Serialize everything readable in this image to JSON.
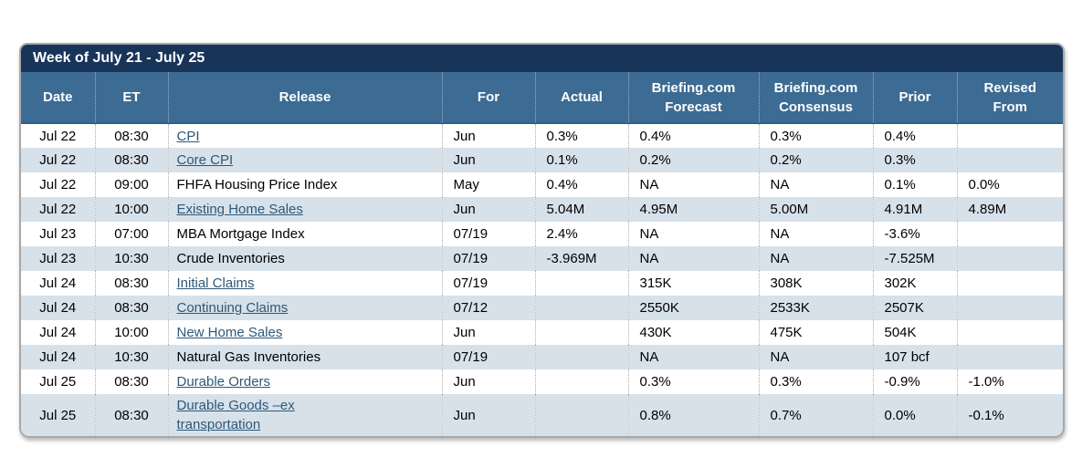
{
  "panel": {
    "title": "Week of July 21 - July 25"
  },
  "colors": {
    "title_bar_bg": "#183459",
    "header_bg": "#3c6b93",
    "header_underline": "#2f6189",
    "alt_row_bg": "#d7e1ea",
    "link_color": "#2d5878",
    "panel_border": "#a8a8a8"
  },
  "table": {
    "columns": [
      {
        "key": "date",
        "label": "Date"
      },
      {
        "key": "et",
        "label": "ET"
      },
      {
        "key": "release",
        "label": "Release"
      },
      {
        "key": "for",
        "label": "For"
      },
      {
        "key": "actual",
        "label": "Actual"
      },
      {
        "key": "forecast",
        "label": "Briefing.com\nForecast"
      },
      {
        "key": "consensus",
        "label": "Briefing.com\nConsensus"
      },
      {
        "key": "prior",
        "label": "Prior"
      },
      {
        "key": "revised",
        "label": "Revised\nFrom"
      }
    ],
    "rows": [
      {
        "date": "Jul 22",
        "et": "08:30",
        "release": "CPI",
        "is_link": true,
        "for": "Jun",
        "actual": "0.3%",
        "forecast": "0.4%",
        "consensus": "0.3%",
        "prior": "0.4%",
        "revised": ""
      },
      {
        "date": "Jul 22",
        "et": "08:30",
        "release": "Core CPI",
        "is_link": true,
        "for": "Jun",
        "actual": "0.1%",
        "forecast": "0.2%",
        "consensus": "0.2%",
        "prior": "0.3%",
        "revised": ""
      },
      {
        "date": "Jul 22",
        "et": "09:00",
        "release": "FHFA Housing Price Index",
        "is_link": false,
        "for": "May",
        "actual": "0.4%",
        "forecast": "NA",
        "consensus": "NA",
        "prior": "0.1%",
        "revised": "0.0%"
      },
      {
        "date": "Jul 22",
        "et": "10:00",
        "release": "Existing Home Sales",
        "is_link": true,
        "for": "Jun",
        "actual": "5.04M",
        "forecast": "4.95M",
        "consensus": "5.00M",
        "prior": "4.91M",
        "revised": "4.89M"
      },
      {
        "date": "Jul 23",
        "et": "07:00",
        "release": "MBA Mortgage Index",
        "is_link": false,
        "for": "07/19",
        "actual": "2.4%",
        "forecast": "NA",
        "consensus": "NA",
        "prior": "-3.6%",
        "revised": ""
      },
      {
        "date": "Jul 23",
        "et": "10:30",
        "release": "Crude Inventories",
        "is_link": false,
        "for": "07/19",
        "actual": "-3.969M",
        "forecast": "NA",
        "consensus": "NA",
        "prior": "-7.525M",
        "revised": ""
      },
      {
        "date": "Jul 24",
        "et": "08:30",
        "release": "Initial Claims",
        "is_link": true,
        "for": "07/19",
        "actual": "",
        "forecast": "315K",
        "consensus": "308K",
        "prior": "302K",
        "revised": ""
      },
      {
        "date": "Jul 24",
        "et": "08:30",
        "release": "Continuing Claims",
        "is_link": true,
        "for": "07/12",
        "actual": "",
        "forecast": "2550K",
        "consensus": "2533K",
        "prior": "2507K",
        "revised": ""
      },
      {
        "date": "Jul 24",
        "et": "10:00",
        "release": "New Home Sales",
        "is_link": true,
        "for": "Jun",
        "actual": "",
        "forecast": "430K",
        "consensus": "475K",
        "prior": "504K",
        "revised": ""
      },
      {
        "date": "Jul 24",
        "et": "10:30",
        "release": "Natural Gas Inventories",
        "is_link": false,
        "for": "07/19",
        "actual": "",
        "forecast": "NA",
        "consensus": "NA",
        "prior": "107 bcf",
        "revised": ""
      },
      {
        "date": "Jul 25",
        "et": "08:30",
        "release": "Durable Orders",
        "is_link": true,
        "for": "Jun",
        "actual": "",
        "forecast": "0.3%",
        "consensus": "0.3%",
        "prior": "-0.9%",
        "revised": "-1.0%"
      },
      {
        "date": "Jul 25",
        "et": "08:30",
        "release": "Durable Goods –ex\ntransportation",
        "is_link": true,
        "for": "Jun",
        "actual": "",
        "forecast": "0.8%",
        "consensus": "0.7%",
        "prior": "0.0%",
        "revised": "-0.1%"
      }
    ]
  }
}
